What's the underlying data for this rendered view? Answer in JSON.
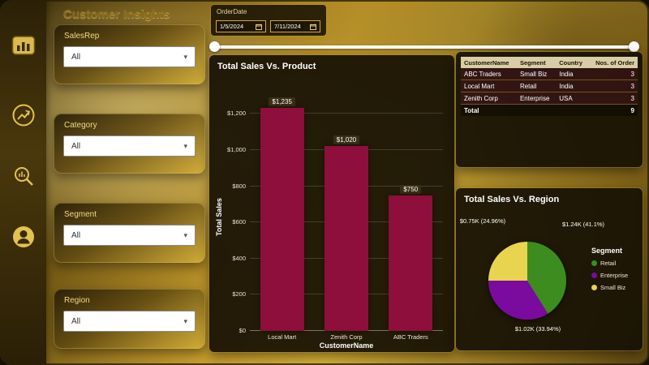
{
  "title": "Customer Insights",
  "accent": {
    "gold": "#c9a227",
    "panel_bg": "#171105",
    "bar_color": "#8e0e3c"
  },
  "sidebar": {
    "icons": [
      {
        "name": "dashboard-icon"
      },
      {
        "name": "trend-chart-icon"
      },
      {
        "name": "search-analytics-icon"
      },
      {
        "name": "user-icon"
      }
    ]
  },
  "slicers": [
    {
      "label": "SalesRep",
      "value": "All"
    },
    {
      "label": "Category",
      "value": "All"
    },
    {
      "label": "Segment",
      "value": "All"
    },
    {
      "label": "Region",
      "value": "All"
    }
  ],
  "date_filter": {
    "label": "OrderDate",
    "start_date": "1/5/2024",
    "end_date": "7/11/2024"
  },
  "table": {
    "headers": [
      "CustomerName",
      "Segment",
      "Country",
      "Nos. of Order"
    ],
    "rows": [
      [
        "ABC Traders",
        "Small Biz",
        "India",
        "3"
      ],
      [
        "Local Mart",
        "Retail",
        "India",
        "3"
      ],
      [
        "Zenith Corp",
        "Enterprise",
        "USA",
        "3"
      ]
    ],
    "total_row": [
      "Total",
      "",
      "",
      "9"
    ]
  },
  "chart_data": [
    {
      "type": "bar",
      "title": "Total Sales Vs. Product",
      "categories": [
        "Local Mart",
        "Zenith Corp",
        "ABC Traders"
      ],
      "values": [
        1235,
        1020,
        750
      ],
      "value_labels": [
        "$1,235",
        "$1,020",
        "$750"
      ],
      "xlabel": "CustomerName",
      "ylabel": "Total Sales",
      "ylim": [
        0,
        1300
      ],
      "ytick_values": [
        0,
        200,
        400,
        600,
        800,
        1000,
        1200
      ],
      "ytick_labels": [
        "$0",
        "$200",
        "$400",
        "$600",
        "$800",
        "$1,000",
        "$1,200"
      ],
      "bar_color": "#8e0e3c",
      "grid": true,
      "legend": false
    },
    {
      "type": "pie",
      "title": "Total Sales Vs. Region",
      "legend_title": "Segment",
      "legend_position": "right",
      "slices": [
        {
          "name": "Retail",
          "value_label": "$1.24K (41.1%)",
          "pct": 41.1,
          "color": "#3d8c1f"
        },
        {
          "name": "Enterprise",
          "value_label": "$1.02K (33.94%)",
          "pct": 33.94,
          "color": "#7a0b9e"
        },
        {
          "name": "Small Biz",
          "value_label": "$0.75K (24.96%)",
          "pct": 24.96,
          "color": "#e8d44f"
        }
      ]
    }
  ]
}
